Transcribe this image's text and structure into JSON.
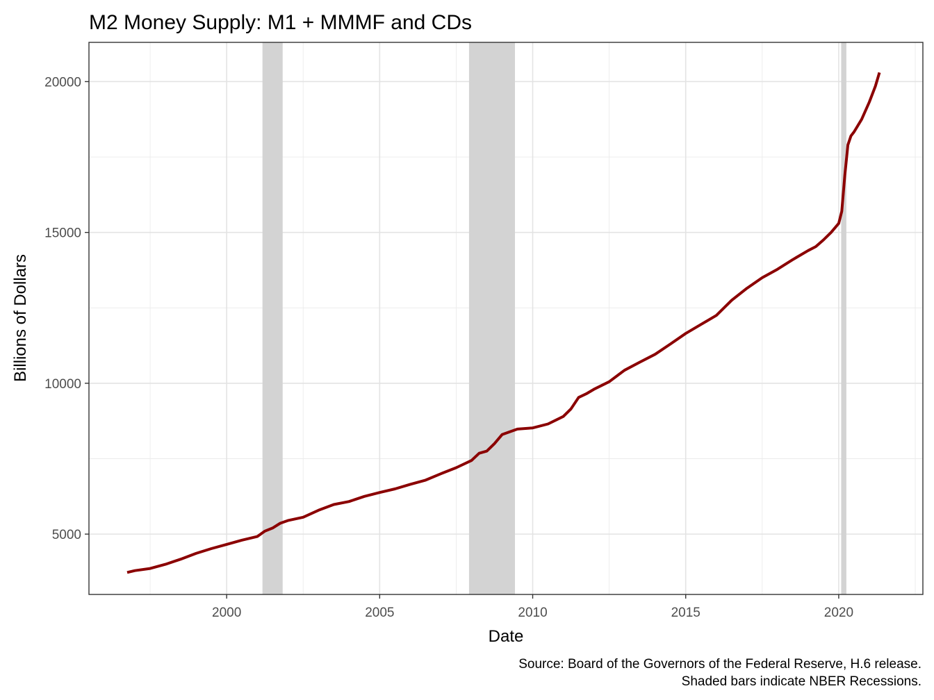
{
  "chart_data": {
    "type": "line",
    "title": "M2 Money Supply: M1 + MMMF and CDs",
    "xlabel": "Date",
    "ylabel": "Billions of Dollars",
    "caption_lines": [
      "Source: Board of the Governors of the Federal Reserve, H.6 release.",
      "Shaded bars indicate NBER Recessions."
    ],
    "xlim": [
      1995.5,
      2022.75
    ],
    "ylim": [
      3000,
      21300
    ],
    "x_ticks": [
      2000,
      2005,
      2010,
      2015,
      2020
    ],
    "x_tick_labels": [
      "2000",
      "2005",
      "2010",
      "2015",
      "2020"
    ],
    "y_ticks": [
      5000,
      10000,
      15000,
      20000
    ],
    "y_tick_labels": [
      "5000",
      "10000",
      "15000",
      "20000"
    ],
    "grid": true,
    "recessions": [
      {
        "start": 2001.17,
        "end": 2001.83
      },
      {
        "start": 2007.92,
        "end": 2009.42
      },
      {
        "start": 2020.08,
        "end": 2020.25
      }
    ],
    "line_color": "#8b0000",
    "recession_color": "#d3d3d3",
    "series": [
      {
        "x": [
          1996.75,
          1997.0,
          1997.5,
          1998.0,
          1998.5,
          1999.0,
          1999.5,
          2000.0,
          2000.5,
          2001.0,
          2001.25,
          2001.5,
          2001.75,
          2002.0,
          2002.5,
          2003.0,
          2003.5,
          2004.0,
          2004.5,
          2005.0,
          2005.5,
          2006.0,
          2006.5,
          2007.0,
          2007.5,
          2008.0,
          2008.25,
          2008.5,
          2008.75,
          2009.0,
          2009.5,
          2010.0,
          2010.5,
          2011.0,
          2011.25,
          2011.5,
          2011.75,
          2012.0,
          2012.5,
          2013.0,
          2013.5,
          2014.0,
          2014.5,
          2015.0,
          2015.5,
          2016.0,
          2016.5,
          2017.0,
          2017.5,
          2018.0,
          2018.5,
          2019.0,
          2019.25,
          2019.5,
          2019.75,
          2020.0,
          2020.1,
          2020.2,
          2020.3,
          2020.4,
          2020.5,
          2020.75,
          2021.0,
          2021.2,
          2021.33
        ],
        "y": [
          3730,
          3790,
          3860,
          4000,
          4170,
          4360,
          4520,
          4660,
          4800,
          4920,
          5100,
          5200,
          5360,
          5450,
          5560,
          5790,
          5980,
          6080,
          6250,
          6380,
          6500,
          6650,
          6790,
          7000,
          7200,
          7440,
          7680,
          7750,
          8000,
          8300,
          8480,
          8520,
          8650,
          8900,
          9150,
          9530,
          9650,
          9800,
          10050,
          10430,
          10700,
          10960,
          11300,
          11650,
          11950,
          12250,
          12750,
          13150,
          13500,
          13780,
          14100,
          14400,
          14530,
          14750,
          15000,
          15300,
          15700,
          16900,
          17900,
          18200,
          18330,
          18750,
          19320,
          19850,
          20300
        ]
      }
    ]
  }
}
